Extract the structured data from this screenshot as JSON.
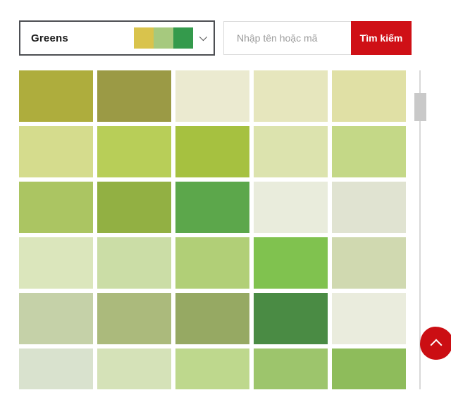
{
  "color_filter": {
    "selected_option": "Greens",
    "option_swatches": [
      "#d9c34c",
      "#a6c97e",
      "#349a4c"
    ],
    "chevron_icon": "chevron-down"
  },
  "search": {
    "placeholder": "Nhập tên hoặc mã",
    "submit_label": "Tìm kiếm"
  },
  "palette_grid": {
    "rows": 6,
    "cols": 5,
    "swatches": [
      [
        "#aead3d",
        "#9b9a45",
        "#ebead0",
        "#e6e6bd",
        "#e0e0a5"
      ],
      [
        "#d5dc8d",
        "#b8ce58",
        "#a6c140",
        "#dce3ae",
        "#c4d887"
      ],
      [
        "#abc562",
        "#92b043",
        "#5ca74b",
        "#e9ecdc",
        "#e0e3d1"
      ],
      [
        "#dbe6bc",
        "#cbdda6",
        "#b1cf77",
        "#80c24f",
        "#d0d9b0"
      ],
      [
        "#c5d1a8",
        "#abba7c",
        "#96a963",
        "#4a8b44",
        "#eaecdd"
      ],
      [
        "#d9e2ce",
        "#d5e2b8",
        "#bed88d",
        "#9dc56c",
        "#8ebc5b"
      ]
    ]
  },
  "scrollbar": {
    "thumb_color": "#c9c9c9",
    "track_color": "#d8d8d8"
  },
  "back_to_top": {
    "icon": "chevron-up",
    "color": "#cb0e13"
  },
  "theme": {
    "accent_red": "#cf1016",
    "dropdown_border": "#4d4f53"
  }
}
